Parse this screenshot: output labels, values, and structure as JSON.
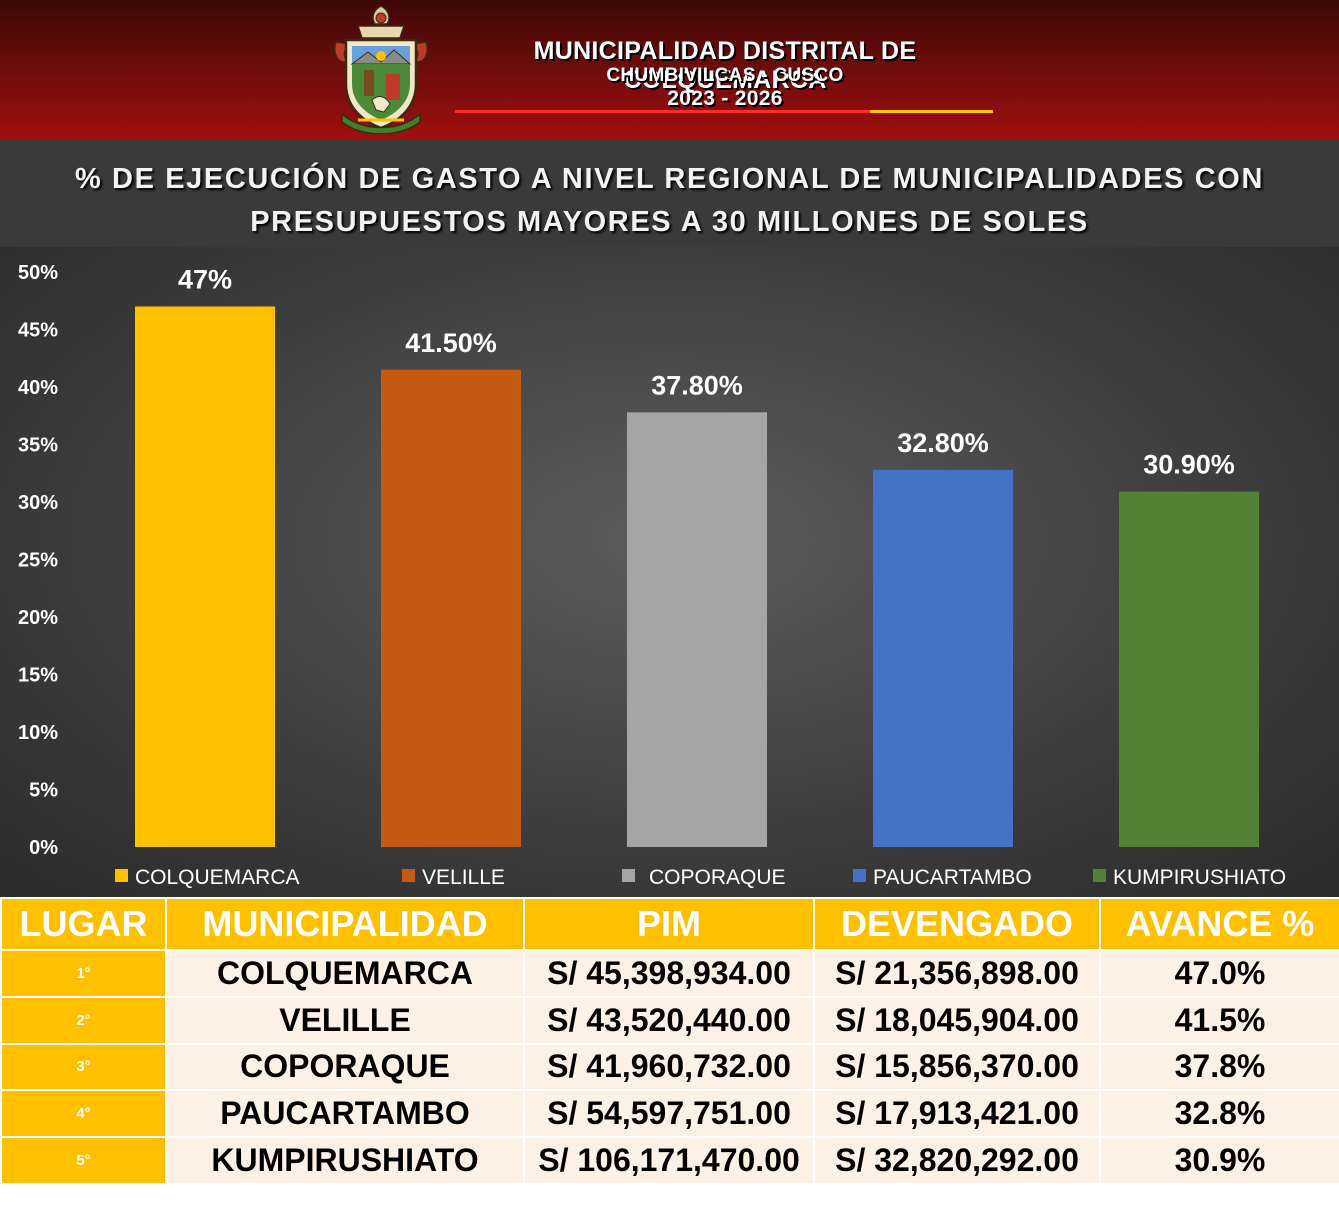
{
  "header": {
    "line1": "MUNICIPALIDAD DISTRITAL DE COLQUEMARCA",
    "line2": "CHUMBIVILCAS - CUSCO",
    "line3": "2023 - 2026"
  },
  "chart_data": {
    "type": "bar",
    "title": "% DE EJECUCIÓN DE GASTO A NIVEL REGIONAL DE MUNICIPALIDADES CON PRESUPUESTOS MAYORES A 30 MILLONES DE SOLES",
    "categories": [
      "COLQUEMARCA",
      "VELILLE",
      "COPORAQUE",
      "PAUCARTAMBO",
      "KUMPIRUSHIATO"
    ],
    "values": [
      47,
      41.5,
      37.8,
      32.8,
      30.9
    ],
    "data_labels": [
      "47%",
      "41.50%",
      "37.80%",
      "32.80%",
      "30.90%"
    ],
    "colors": [
      "#ffc000",
      "#c55a11",
      "#a5a5a5",
      "#4472c4",
      "#548235"
    ],
    "ylim": [
      0,
      50
    ],
    "y_ticks": [
      "0%",
      "5%",
      "10%",
      "15%",
      "20%",
      "25%",
      "30%",
      "35%",
      "40%",
      "45%",
      "50%"
    ],
    "legend": {
      "position": "bottom",
      "entries": [
        "COLQUEMARCA",
        "VELILLE",
        "COPORAQUE",
        "PAUCARTAMBO",
        "KUMPIRUSHIATO"
      ]
    },
    "grid": false
  },
  "table": {
    "headers": [
      "LUGAR",
      "MUNICIPALIDAD",
      "PIM",
      "DEVENGADO",
      "AVANCE %"
    ],
    "rows": [
      [
        "1°",
        "COLQUEMARCA",
        "S/ 45,398,934.00",
        "S/ 21,356,898.00",
        "47.0%"
      ],
      [
        "2°",
        "VELILLE",
        "S/ 43,520,440.00",
        "S/ 18,045,904.00",
        "41.5%"
      ],
      [
        "3°",
        "COPORAQUE",
        "S/ 41,960,732.00",
        "S/ 15,856,370.00",
        "37.8%"
      ],
      [
        "4°",
        "PAUCARTAMBO",
        "S/ 54,597,751.00",
        "S/ 17,913,421.00",
        "32.8%"
      ],
      [
        "5°",
        "KUMPIRUSHIATO",
        "S/ 106,171,470.00",
        "S/ 32,820,292.00",
        "30.9%"
      ]
    ],
    "colors": {
      "header_bg": "#ffc000",
      "cell_bg": "#fdf1e6"
    }
  }
}
